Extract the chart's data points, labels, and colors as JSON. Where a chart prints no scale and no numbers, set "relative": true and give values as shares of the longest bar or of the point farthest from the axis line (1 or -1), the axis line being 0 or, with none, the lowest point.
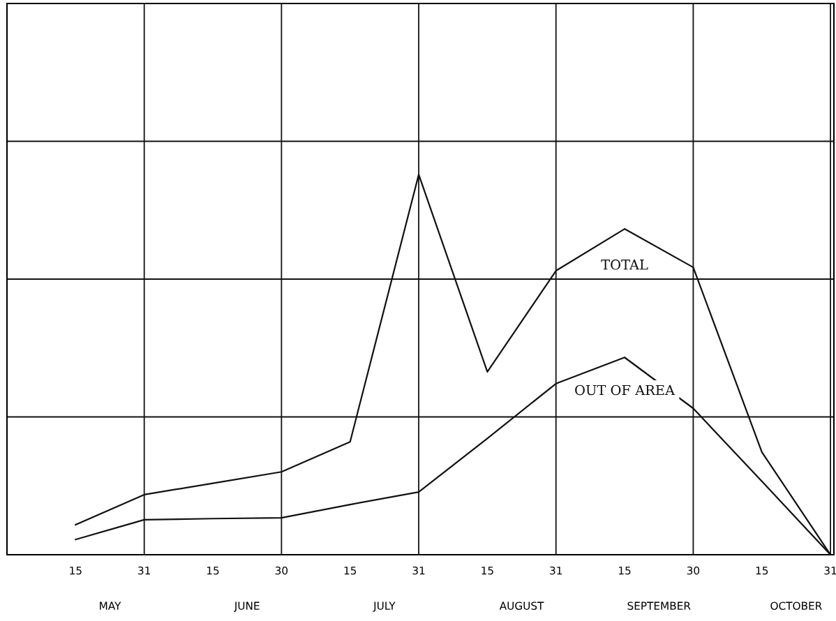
{
  "chart_data": {
    "type": "line",
    "relative": true,
    "categories": [
      "15",
      "31",
      "15",
      "30",
      "15",
      "31",
      "15",
      "31",
      "15",
      "30",
      "15",
      "31"
    ],
    "series": [
      {
        "name": "TOTAL",
        "color": "#111111",
        "values": [
          0.079,
          0.158,
          0.188,
          0.218,
          0.297,
          1.0,
          0.481,
          0.747,
          0.857,
          0.756,
          0.27,
          0.0
        ]
      },
      {
        "name": "OUT OF AREA",
        "color": "#111111",
        "values": [
          0.04,
          0.092,
          0.095,
          0.097,
          0.132,
          0.165,
          0.306,
          0.45,
          0.519,
          0.385,
          0.193,
          0.0
        ]
      }
    ],
    "annotations": [
      "MAY",
      "JUNE",
      "JULY",
      "AUGUST",
      "SEPTEMBER",
      "OCTOBER"
    ],
    "grid": true,
    "marker": "none",
    "line_style": "solid",
    "legend": false
  }
}
